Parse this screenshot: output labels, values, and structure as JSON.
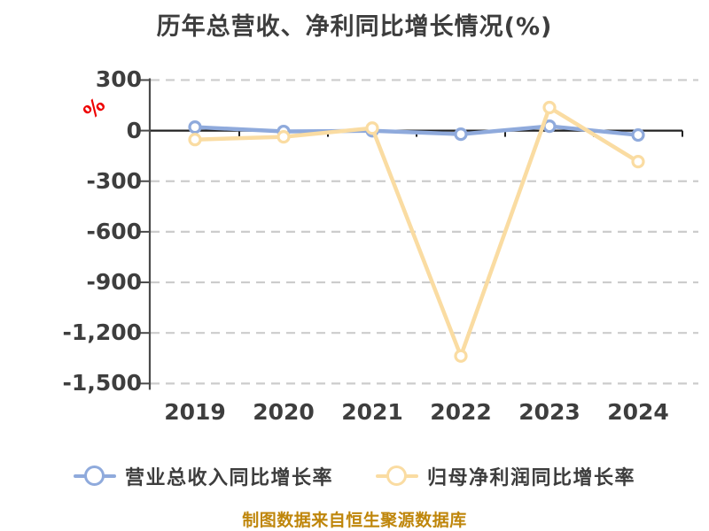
{
  "title": "历年总营收、净利同比增长情况(%)",
  "y_axis_unit": "%",
  "footer": "制图数据来自恒生聚源数据库",
  "colors": {
    "revenue_series": "#8FAADC",
    "net_profit_series": "#FADCA2",
    "title_text": "#3d3d3d",
    "axis_text": "#3e3e3e",
    "unit_label": "#ee0000",
    "source_note": "#bf860b",
    "gridline": "#cccccc",
    "axis_line": "#4a4a4a",
    "zero_axis_line": "#222222",
    "marker_fill": "#ffffff"
  },
  "chart_data": {
    "type": "line",
    "title": "历年总营收、净利同比增长情况(%)",
    "xlabel": "",
    "ylabel": "%",
    "categories": [
      "2019",
      "2020",
      "2021",
      "2022",
      "2023",
      "2024"
    ],
    "series": [
      {
        "name": "营业总收入同比增长率",
        "color": "#8FAADC",
        "values": [
          21,
          -5,
          -1,
          -21,
          26,
          -26
        ]
      },
      {
        "name": "归母净利润同比增长率",
        "color": "#FADCA2",
        "values": [
          -53,
          -37,
          15,
          -1337,
          137,
          -184
        ]
      }
    ],
    "ylim": [
      -1500,
      300
    ],
    "yticks": [
      300,
      0,
      -300,
      -600,
      -900,
      -1200,
      -1500
    ],
    "ytick_labels": [
      "300",
      "0",
      "-300",
      "-600",
      "-900",
      "-1,200",
      "-1,500"
    ],
    "grid": true,
    "grid_style": "dashed",
    "marker": "circle-open",
    "legend_position": "bottom",
    "source_note": "制图数据来自恒生聚源数据库"
  }
}
